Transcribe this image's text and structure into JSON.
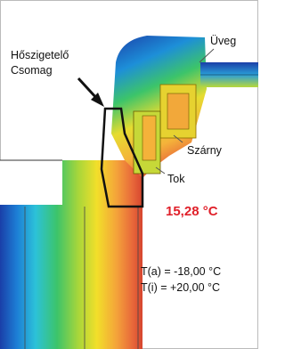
{
  "labels": {
    "insulation_line1": "Hőszigetelő",
    "insulation_line2": "Csomag",
    "glass": "Üveg",
    "sash": "Szárny",
    "frame": "Tok",
    "surface_temperature": "15,28 °C",
    "outside_temperature": "T(a) = -18,00 °C",
    "inside_temperature": "T(i) = +20,00 °C"
  }
}
